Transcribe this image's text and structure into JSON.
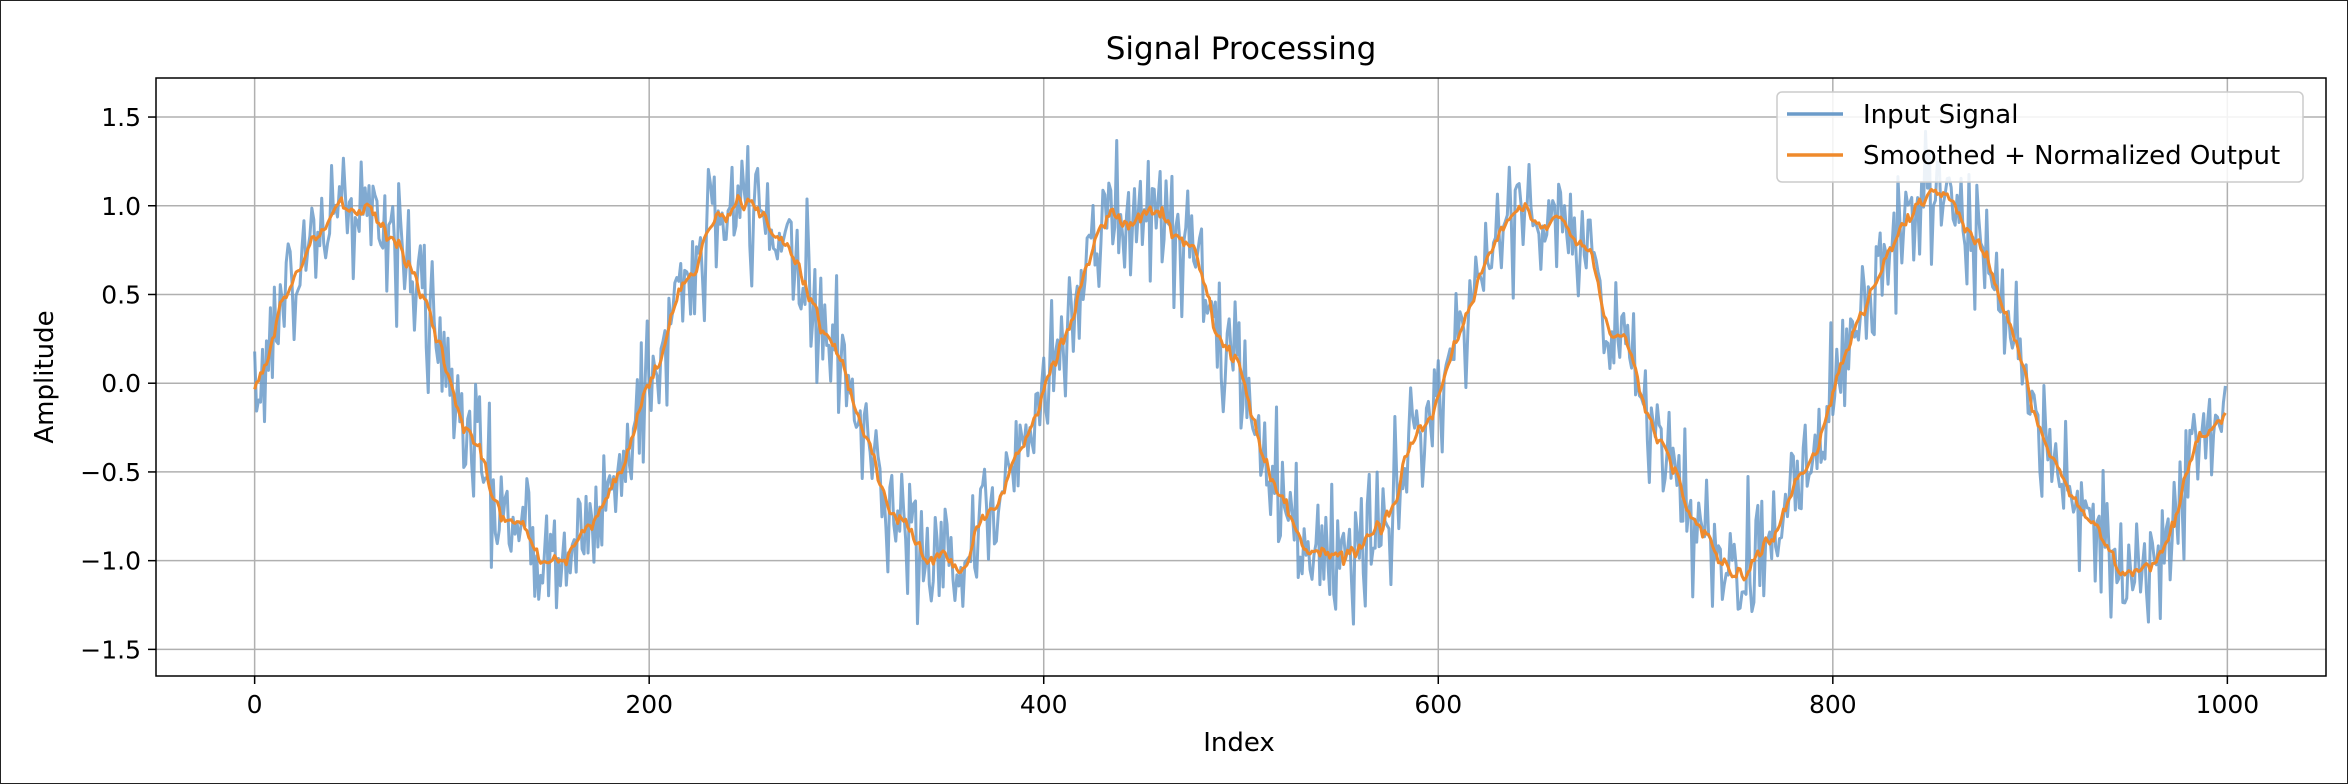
{
  "chart_data": {
    "type": "line",
    "title": "Signal Processing",
    "xlabel": "Index",
    "ylabel": "Amplitude",
    "xlim": [
      -50,
      1050
    ],
    "ylim": [
      -1.65,
      1.72
    ],
    "xticks": [
      0,
      200,
      400,
      600,
      800,
      1000
    ],
    "xtick_labels": [
      "0",
      "200",
      "400",
      "600",
      "800",
      "1000"
    ],
    "yticks": [
      -1.5,
      -1.0,
      -0.5,
      0.0,
      0.5,
      1.0,
      1.5
    ],
    "ytick_labels": [
      "−1.5",
      "−1.0",
      "−0.5",
      "0.0",
      "0.5",
      "1.0",
      "1.5"
    ],
    "grid": true,
    "legend": "top-right",
    "n_points": 1000,
    "cycles": 5,
    "series": [
      {
        "name": "Input Signal",
        "color": "#6b9bc9",
        "form": "sine of 5 cycles over indices 0–999 plus noise of about ±0.35",
        "noise": 0.35
      },
      {
        "name": "Smoothed + Normalized Output",
        "color": "#ef8a2c",
        "form": "moving-average smoothed version of the input signal",
        "noise": 0.1
      }
    ]
  }
}
